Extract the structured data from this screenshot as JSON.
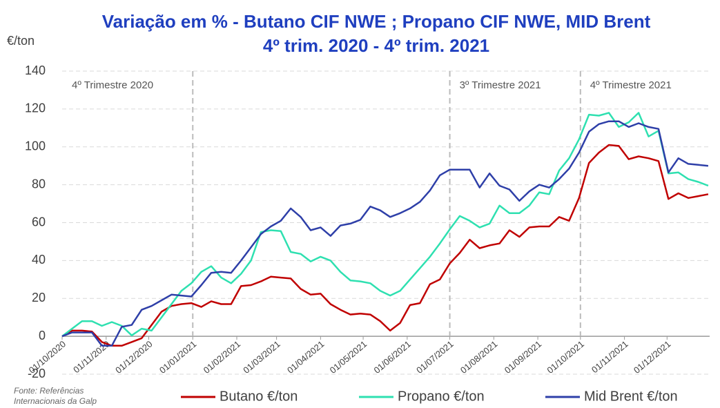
{
  "chart_data": {
    "type": "line",
    "title": "Variação em %  - Butano CIF NWE ; Propano CIF NWE, MID Brent",
    "subtitle": "4º trim. 2020 - 4º trim. 2021",
    "y_label": "€/ton",
    "note": [
      "Fonte: Referências",
      "Internacionais da Galp"
    ],
    "x": [
      "01/10/2020",
      "08/10/2020",
      "15/10/2020",
      "22/10/2020",
      "29/10/2020",
      "05/11/2020",
      "12/11/2020",
      "19/11/2020",
      "26/11/2020",
      "03/12/2020",
      "10/12/2020",
      "17/12/2020",
      "24/12/2020",
      "31/12/2020",
      "07/01/2021",
      "14/01/2021",
      "21/01/2021",
      "28/01/2021",
      "04/02/2021",
      "11/02/2021",
      "18/02/2021",
      "25/02/2021",
      "04/03/2021",
      "11/03/2021",
      "18/03/2021",
      "25/03/2021",
      "01/04/2021",
      "08/04/2021",
      "15/04/2021",
      "22/04/2021",
      "29/04/2021",
      "06/05/2021",
      "13/05/2021",
      "20/05/2021",
      "27/05/2021",
      "03/06/2021",
      "10/06/2021",
      "17/06/2021",
      "24/06/2021",
      "01/07/2021",
      "08/07/2021",
      "15/07/2021",
      "22/07/2021",
      "29/07/2021",
      "05/08/2021",
      "12/08/2021",
      "19/08/2021",
      "26/08/2021",
      "02/09/2021",
      "09/09/2021",
      "16/09/2021",
      "23/09/2021",
      "30/09/2021",
      "07/10/2021",
      "14/10/2021",
      "21/10/2021",
      "28/10/2021",
      "04/11/2021",
      "11/11/2021",
      "18/11/2021",
      "25/11/2021",
      "02/12/2021",
      "09/12/2021",
      "16/12/2021",
      "23/12/2021",
      "30/12/2021"
    ],
    "series": [
      {
        "name": "Butano €/ton",
        "color": "#c00000",
        "values": [
          0,
          3,
          3,
          2.5,
          -3,
          -5,
          -5,
          -3,
          -1,
          6,
          13,
          16,
          17,
          17.5,
          15.5,
          18.5,
          17,
          17,
          26.5,
          27,
          29,
          31.5,
          31,
          30.5,
          25,
          22,
          22.5,
          17,
          14,
          11.5,
          12,
          11.5,
          8,
          3,
          7,
          16.5,
          17.5,
          27.5,
          30,
          38.5,
          44,
          51,
          46.5,
          48,
          49,
          56,
          52.5,
          57.5,
          58,
          58,
          63,
          61,
          73,
          91.5,
          97,
          101,
          100.5,
          93.5,
          95,
          94,
          92.5,
          72.5,
          75.5,
          73,
          74,
          75
        ]
      },
      {
        "name": "Propano €/ton",
        "color": "#2ee0b0",
        "values": [
          0,
          4,
          8,
          8,
          5.5,
          7.5,
          5.5,
          0.5,
          4,
          3,
          10,
          17,
          24,
          28,
          34,
          37,
          31,
          28,
          33,
          40,
          55,
          56,
          55.5,
          44.5,
          43.5,
          39.5,
          42,
          40,
          34,
          29.5,
          29,
          28,
          24,
          21.5,
          24,
          30,
          36,
          42,
          49,
          56.5,
          63.5,
          61,
          57.5,
          59.5,
          69,
          65,
          65,
          69,
          76,
          75,
          87.5,
          94,
          104,
          117,
          116.5,
          118,
          110.5,
          113,
          118,
          105.5,
          108.5,
          86,
          86.5,
          83,
          81.5,
          79.5
        ]
      },
      {
        "name": "Mid Brent €/ton",
        "color": "#2e3fa8",
        "values": [
          0,
          2,
          2,
          2,
          -5,
          -5,
          5,
          6,
          14,
          16,
          19,
          22,
          21.5,
          21,
          27,
          33.5,
          34,
          33.5,
          40,
          47,
          54,
          58,
          61,
          67.5,
          63,
          56,
          57.5,
          53,
          58.5,
          59.5,
          61.5,
          68.5,
          66.5,
          63,
          65,
          67.5,
          71,
          77,
          85,
          88,
          88,
          88,
          78.5,
          86,
          79.5,
          77.5,
          71.5,
          76.5,
          80,
          78.5,
          83,
          88.5,
          97,
          108,
          112,
          113.5,
          113.5,
          110.5,
          112.5,
          110.5,
          109.5,
          86.5,
          94,
          91,
          90.5,
          90
        ]
      }
    ],
    "xlim": [
      "01/10/2020",
      "31/12/2021"
    ],
    "xticks": [
      "01/10/2020",
      "01/11/2020",
      "01/12/2020",
      "01/01/2021",
      "01/02/2021",
      "01/03/2021",
      "01/04/2021",
      "01/05/2021",
      "01/06/2021",
      "01/07/2021",
      "01/08/2021",
      "01/09/2021",
      "01/10/2021",
      "01/11/2021",
      "01/12/2021"
    ],
    "ylim": [
      -20,
      140
    ],
    "yticks": [
      -20,
      0,
      20,
      40,
      60,
      80,
      100,
      120,
      140
    ],
    "grid": true,
    "vlines": [
      "01/01/2021",
      "01/07/2021",
      "01/10/2021"
    ],
    "annotations": [
      {
        "text": "4º Trimestre 2020",
        "x": "01/10/2020"
      },
      {
        "text": "3º Trimestre 2021",
        "x": "01/07/2021"
      },
      {
        "text": "4º Trimestre 2021",
        "x": "01/10/2021"
      }
    ],
    "legend": "bottom"
  }
}
